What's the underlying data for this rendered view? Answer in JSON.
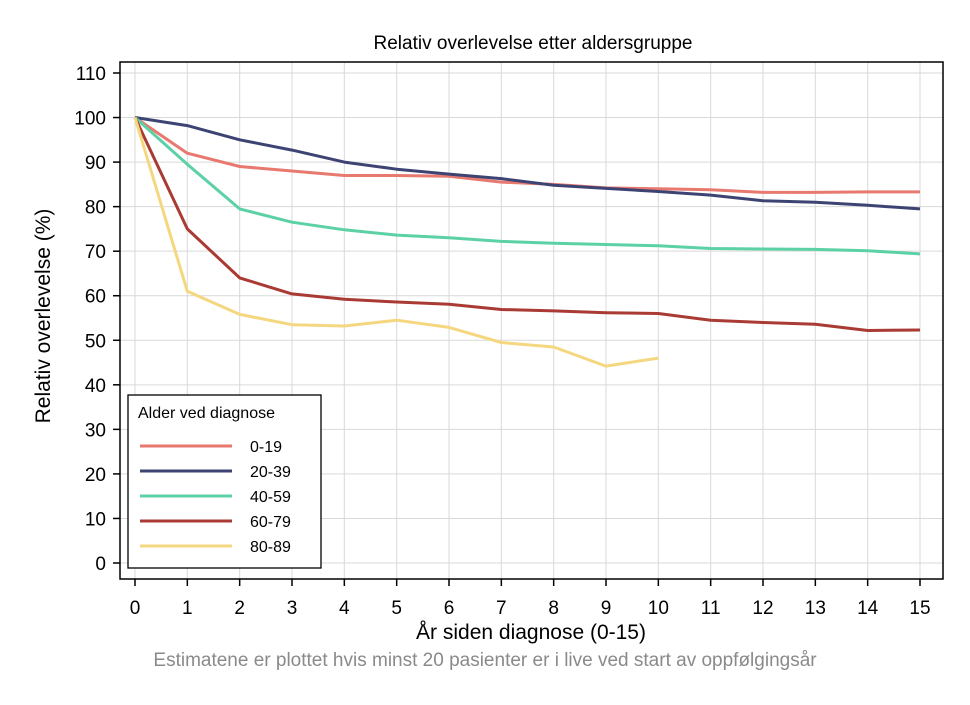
{
  "chart_data": {
    "type": "line",
    "title": "Relativ overlevelse etter aldersgruppe",
    "xlabel": "År siden diagnose (0-15)",
    "ylabel": "Relativ overlevelse (%)",
    "xlim": [
      0,
      15
    ],
    "ylim": [
      0,
      110
    ],
    "x_ticks": [
      0,
      1,
      2,
      3,
      4,
      5,
      6,
      7,
      8,
      9,
      10,
      11,
      12,
      13,
      14,
      15
    ],
    "y_ticks": [
      0,
      10,
      20,
      30,
      40,
      50,
      60,
      70,
      80,
      90,
      100,
      110
    ],
    "grid": true,
    "legend_title": "Alder ved diagnose",
    "legend_position": "bottom-left",
    "series": [
      {
        "name": "0-19",
        "color": "#e8796f",
        "x": [
          0,
          1,
          2,
          3,
          4,
          5,
          6,
          7,
          8,
          9,
          10,
          11,
          12,
          13,
          14,
          15
        ],
        "y": [
          100,
          92,
          89,
          88,
          87,
          87,
          86.8,
          85.5,
          85,
          84.2,
          84,
          83.8,
          83.2,
          83.2,
          83.3,
          83.3
        ]
      },
      {
        "name": "20-39",
        "color": "#3d4473",
        "x": [
          0,
          1,
          2,
          3,
          4,
          5,
          6,
          7,
          8,
          9,
          10,
          11,
          12,
          13,
          14,
          15
        ],
        "y": [
          100,
          98.2,
          95,
          92.7,
          90,
          88.4,
          87.3,
          86.3,
          84.8,
          84.1,
          83.4,
          82.6,
          81.3,
          81,
          80.3,
          79.5
        ]
      },
      {
        "name": "40-59",
        "color": "#5cd1a6",
        "x": [
          0,
          1,
          2,
          3,
          4,
          5,
          6,
          7,
          8,
          9,
          10,
          11,
          12,
          13,
          14,
          15
        ],
        "y": [
          100,
          89.5,
          79.5,
          76.5,
          74.8,
          73.6,
          73,
          72.2,
          71.8,
          71.5,
          71.2,
          70.6,
          70.5,
          70.4,
          70.1,
          69.4
        ]
      },
      {
        "name": "60-79",
        "color": "#a93b34",
        "x": [
          0,
          1,
          2,
          3,
          4,
          5,
          6,
          7,
          8,
          9,
          10,
          11,
          12,
          13,
          14,
          15
        ],
        "y": [
          100,
          75,
          64,
          60.4,
          59.2,
          58.6,
          58.1,
          56.9,
          56.6,
          56.2,
          56,
          54.5,
          54,
          53.6,
          52.2,
          52.3
        ]
      },
      {
        "name": "80-89",
        "color": "#f5d780",
        "x": [
          0,
          1,
          2,
          3,
          4,
          5,
          6,
          7,
          8,
          9,
          10
        ],
        "y": [
          100,
          61,
          55.8,
          53.5,
          53.2,
          54.5,
          52.9,
          49.5,
          48.5,
          44.2,
          46
        ]
      }
    ]
  },
  "caption": "Estimatene er plottet hvis minst 20 pasienter er i live ved start av oppfølgingsår"
}
